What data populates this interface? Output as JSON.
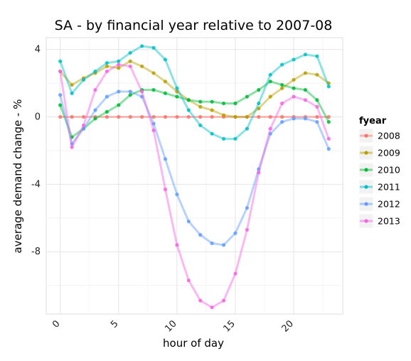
{
  "chart_data": {
    "type": "line",
    "title": "SA - by financial year relative to 2007-08",
    "xlabel": "hour of day",
    "ylabel": "average demand change - %",
    "xlim": [
      -1.2,
      24.2
    ],
    "ylim": [
      -11.7,
      4.7
    ],
    "xticks": [
      0,
      5,
      10,
      15,
      20
    ],
    "yticks": [
      4,
      0,
      -4,
      -8
    ],
    "grid": true,
    "legend_title": "fyear",
    "legend_position": "right",
    "x": [
      0,
      1,
      2,
      3,
      4,
      5,
      6,
      7,
      8,
      9,
      10,
      11,
      12,
      13,
      14,
      15,
      16,
      17,
      18,
      19,
      20,
      21,
      22,
      23
    ],
    "series": [
      {
        "name": "2008",
        "color": "#F8766D",
        "values": [
          0,
          0,
          0,
          0,
          0,
          0,
          0,
          0,
          0,
          0,
          0,
          0,
          0,
          0,
          0,
          0,
          0,
          0,
          0,
          0,
          0,
          0,
          0,
          0
        ]
      },
      {
        "name": "2009",
        "color": "#B79F00",
        "values": [
          2.7,
          1.9,
          2.3,
          2.6,
          3.0,
          2.9,
          3.3,
          3.0,
          2.6,
          2.1,
          1.5,
          1.0,
          0.6,
          0.4,
          0.1,
          0.0,
          0.0,
          0.5,
          1.2,
          1.7,
          2.2,
          2.6,
          2.5,
          2.0
        ]
      },
      {
        "name": "2010",
        "color": "#00BA38",
        "values": [
          0.7,
          -1.2,
          -0.7,
          -0.1,
          0.3,
          0.7,
          1.3,
          1.6,
          1.6,
          1.4,
          1.2,
          1.0,
          0.9,
          0.9,
          0.8,
          0.8,
          1.2,
          1.6,
          2.1,
          1.9,
          1.7,
          1.6,
          1.0,
          -0.3
        ]
      },
      {
        "name": "2011",
        "color": "#00BFC4",
        "values": [
          3.3,
          1.4,
          2.2,
          2.7,
          3.2,
          3.3,
          3.8,
          4.2,
          4.1,
          3.4,
          1.7,
          0.4,
          -0.5,
          -1.0,
          -1.3,
          -1.3,
          -0.7,
          0.8,
          2.5,
          3.1,
          3.4,
          3.7,
          3.6,
          1.8
        ]
      },
      {
        "name": "2012",
        "color": "#619CFF",
        "values": [
          1.3,
          -1.6,
          -0.7,
          0.4,
          1.2,
          1.5,
          1.5,
          1.2,
          -0.4,
          -2.5,
          -4.6,
          -6.2,
          -7.0,
          -7.5,
          -7.6,
          -6.9,
          -5.4,
          -3.1,
          -1.0,
          -0.3,
          -0.1,
          -0.1,
          -0.3,
          -1.9
        ]
      },
      {
        "name": "2013",
        "color": "#F564E3",
        "values": [
          2.7,
          -1.8,
          -0.5,
          1.6,
          2.7,
          3.1,
          3.0,
          1.5,
          -0.8,
          -4.3,
          -7.6,
          -9.7,
          -10.9,
          -11.3,
          -10.9,
          -9.3,
          -6.7,
          -3.3,
          -0.7,
          0.8,
          1.2,
          1.0,
          0.6,
          -1.3
        ]
      }
    ]
  }
}
